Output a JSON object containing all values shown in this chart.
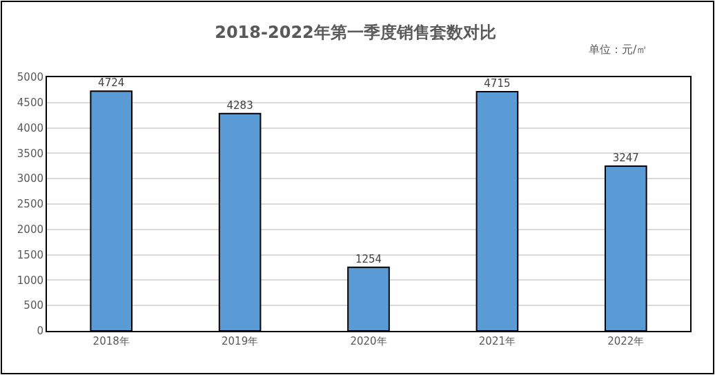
{
  "chart_data": {
    "type": "bar",
    "title": "2018-2022年第一季度销售套数对比",
    "annotations": [
      "单位：元/㎡"
    ],
    "categories": [
      "2018年",
      "2019年",
      "2020年",
      "2021年",
      "2022年"
    ],
    "values": [
      4724,
      4283,
      1254,
      4715,
      3247
    ],
    "color": "#5b9bd5",
    "ylim": [
      0,
      5000
    ],
    "yticks": [
      0,
      500,
      1000,
      1500,
      2000,
      2500,
      3000,
      3500,
      4000,
      4500,
      5000
    ],
    "grid": "y",
    "data_labels": true
  }
}
